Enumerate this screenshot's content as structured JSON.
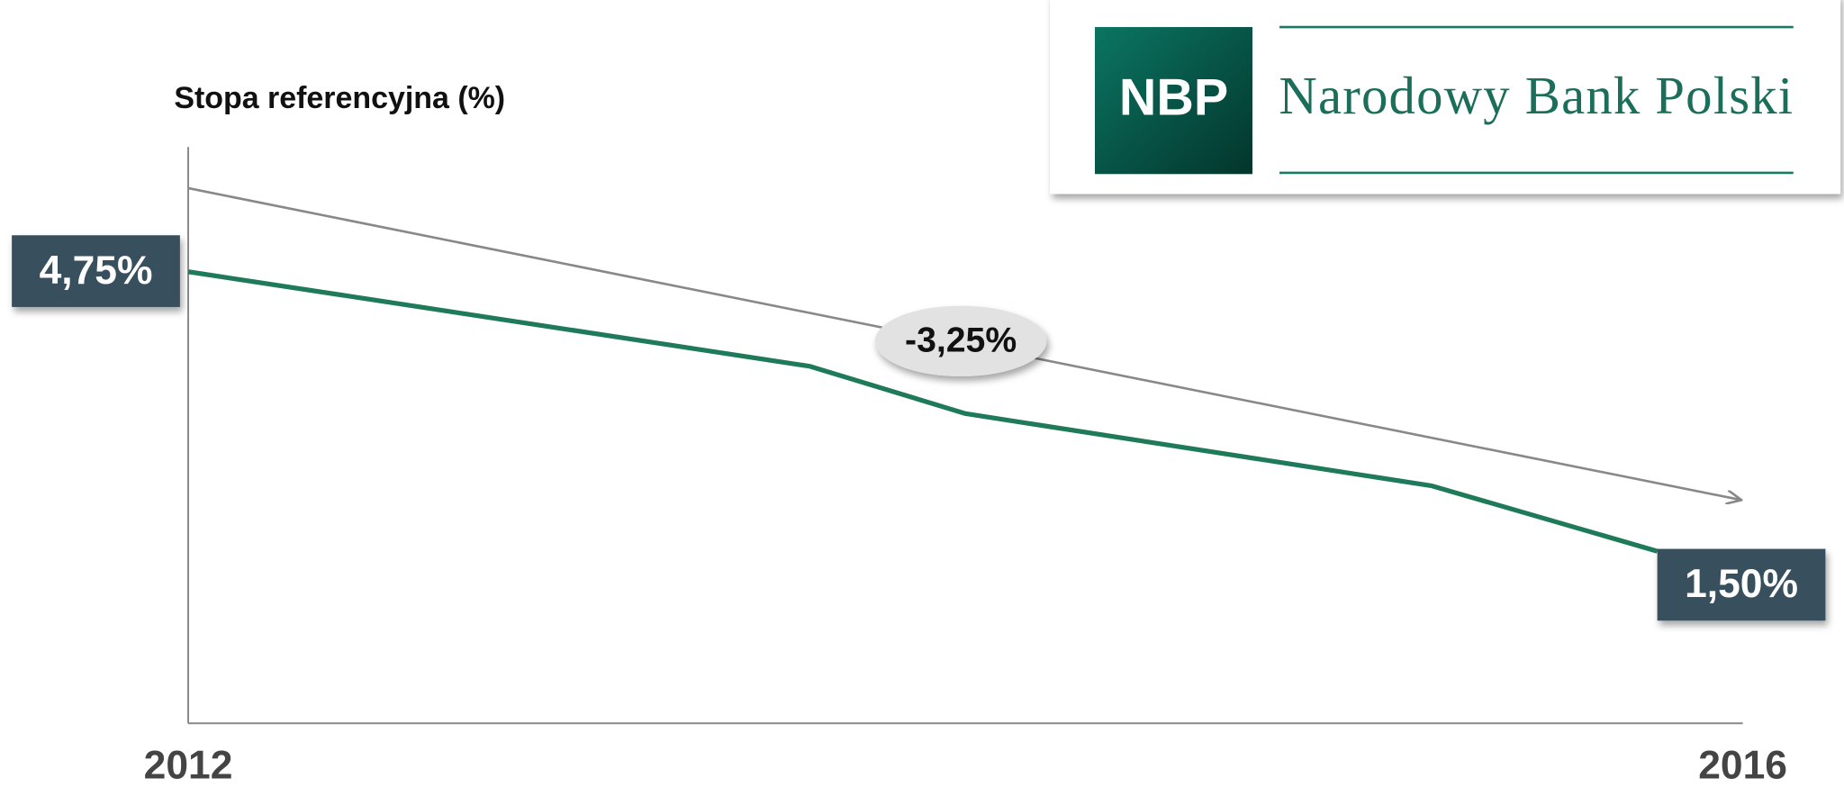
{
  "chart_data": {
    "type": "line",
    "title": "Stopa referencyjna (%)",
    "x": [
      2012,
      2013.6,
      2014,
      2015.2,
      2015.78
    ],
    "values": [
      4.75,
      3.65,
      3.1,
      2.26,
      1.5
    ],
    "value_labels": [
      "4,75%",
      null,
      null,
      null,
      "1,50%"
    ],
    "color": "#1f7a5a",
    "xlim": [
      2012,
      2016
    ],
    "xticks": [
      2012,
      2016
    ],
    "ylim": [
      -0.5,
      6.2
    ],
    "annotation": "-3,25%"
  },
  "logo": {
    "abbr": "NBP",
    "name": "Narodowy Bank Polski"
  }
}
